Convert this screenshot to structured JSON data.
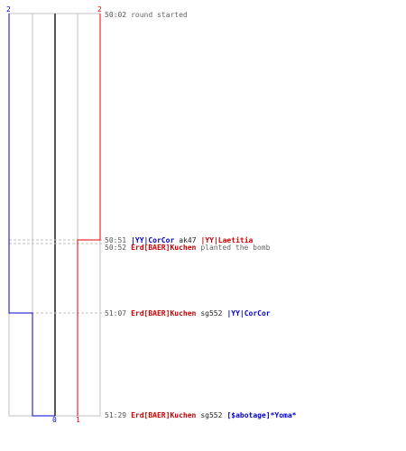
{
  "colors": {
    "team_a": "#0000cc",
    "team_b": "#ee0000",
    "grid": "#c0c0c0",
    "center": "#555555",
    "text": "#222222",
    "muted": "#666666"
  },
  "scale": {
    "top_left": "2",
    "top_right": "2",
    "bottom_zero": "0",
    "bottom_one": "1"
  },
  "events": [
    {
      "time": "50:02",
      "text": "round started"
    },
    {
      "time": "50:51",
      "killer": "|YY|CorCor",
      "weapon": "ak47",
      "victim": "|YY|Laetitia"
    },
    {
      "time": "50:52",
      "actor": "Erd[BAER]Kuchen",
      "text": "planted the bomb"
    },
    {
      "time": "51:07",
      "killer": "Erd[BAER]Kuchen",
      "weapon": "sg552",
      "victim": "|YY|CorCor"
    },
    {
      "time": "51:29",
      "killer": "Erd[BAER]Kuchen",
      "weapon": "sg552",
      "victim": "[$abotage]*Yoma*"
    }
  ]
}
